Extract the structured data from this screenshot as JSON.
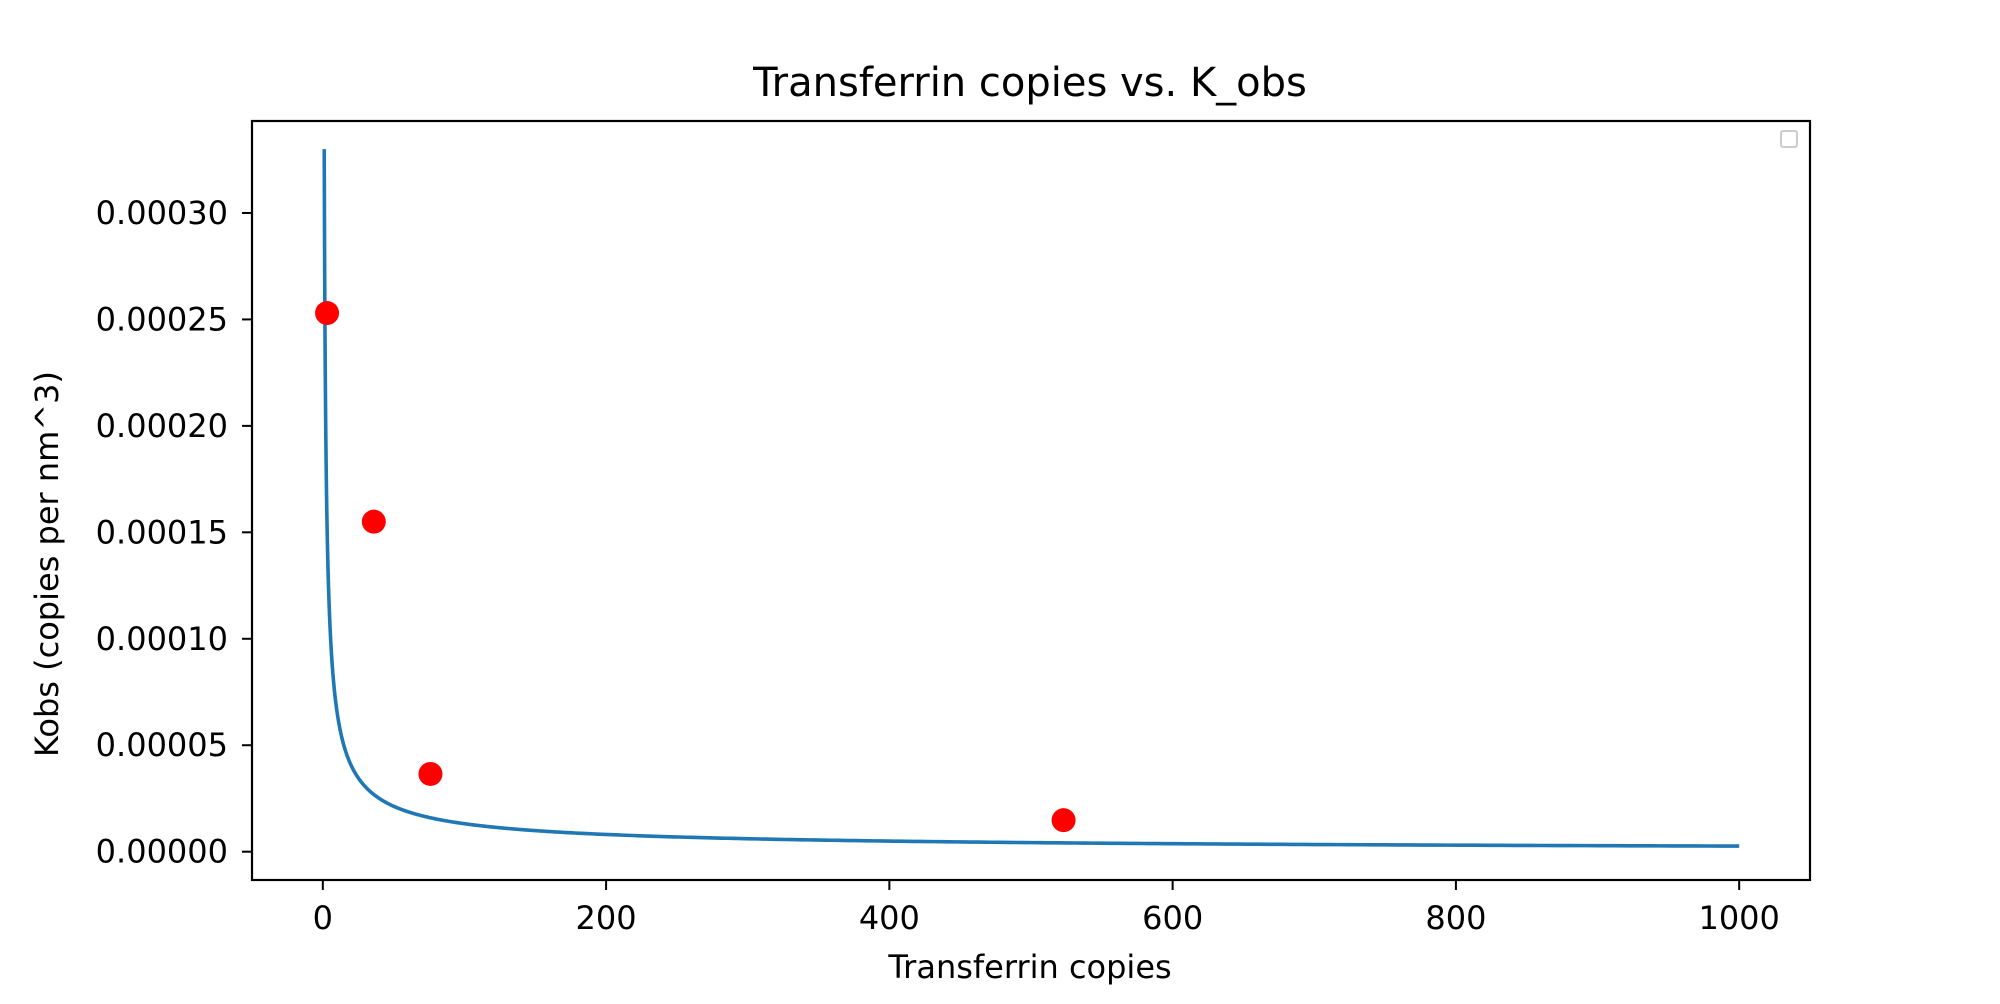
{
  "chart_data": {
    "type": "scatter",
    "title": "Transferrin copies vs. K_obs",
    "xlabel": "Transferrin copies",
    "ylabel": "Kobs (copies per nm^3)",
    "xlim": [
      -50,
      1050
    ],
    "ylim": [
      -1.33e-05,
      0.0003432
    ],
    "x_ticks": [
      0,
      200,
      400,
      600,
      800,
      1000
    ],
    "x_tick_labels": [
      "0",
      "200",
      "400",
      "600",
      "800",
      "1000"
    ],
    "y_ticks": [
      0,
      5e-05,
      0.0001,
      0.00015,
      0.0002,
      0.00025,
      0.0003
    ],
    "y_tick_labels": [
      "0.00000",
      "0.00005",
      "0.00010",
      "0.00015",
      "0.00020",
      "0.00025",
      "0.00030"
    ],
    "grid": false,
    "legend": "top-right (empty)",
    "series": [
      {
        "kind": "scatter",
        "color": "#ff0000",
        "x": [
          3,
          36,
          76,
          523
        ],
        "y": [
          0.000253,
          0.000155,
          3.65e-05,
          1.48e-05
        ]
      },
      {
        "kind": "line",
        "color": "#1f77b4",
        "fit": "y = 0.00033 / x^0.7",
        "x_range": [
          1,
          1000
        ],
        "x": [
          1,
          2,
          3,
          5,
          8,
          12,
          20,
          30,
          50,
          75,
          100,
          150,
          200,
          300,
          400,
          600,
          800,
          1000
        ],
        "y": [
          0.00033,
          0.000203,
          0.000153,
          0.000107,
          7.75e-05,
          5.77e-05,
          4.02e-05,
          3.02e-05,
          2.11e-05,
          1.59e-05,
          1.31e-05,
          9.86e-06,
          8.09e-06,
          6.09e-06,
          5e-06,
          3.77e-06,
          3.1e-06,
          2.62e-06
        ]
      }
    ]
  }
}
